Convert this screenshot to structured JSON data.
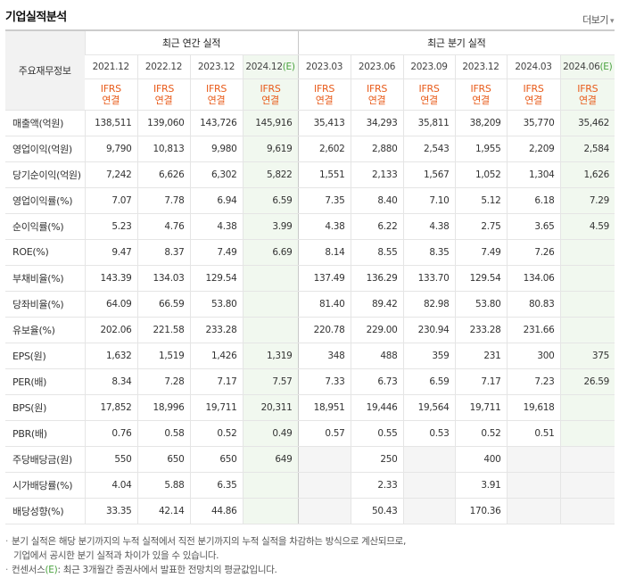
{
  "section_title": "기업실적분석",
  "more_label": "더보기",
  "more_arrow": "▾",
  "label_header": "주요재무정보",
  "groups": {
    "annual": "최근 연간 실적",
    "quarter": "최근 분기 실적"
  },
  "periods": [
    {
      "p": "2021.12",
      "e": ""
    },
    {
      "p": "2022.12",
      "e": ""
    },
    {
      "p": "2023.12",
      "e": ""
    },
    {
      "p": "2024.12",
      "e": "(E)"
    },
    {
      "p": "2023.03",
      "e": ""
    },
    {
      "p": "2023.06",
      "e": ""
    },
    {
      "p": "2023.09",
      "e": ""
    },
    {
      "p": "2023.12",
      "e": ""
    },
    {
      "p": "2024.03",
      "e": ""
    },
    {
      "p": "2024.06",
      "e": "(E)"
    }
  ],
  "basis_line1": "IFRS",
  "basis_line2": "연결",
  "rows": [
    {
      "label": "매출액(억원)",
      "values": [
        "138,511",
        "139,060",
        "143,726",
        "145,916",
        "35,413",
        "34,293",
        "35,811",
        "38,209",
        "35,770",
        "35,462"
      ]
    },
    {
      "label": "영업이익(억원)",
      "values": [
        "9,790",
        "10,813",
        "9,980",
        "9,619",
        "2,602",
        "2,880",
        "2,543",
        "1,955",
        "2,209",
        "2,584"
      ]
    },
    {
      "label": "당기순이익(억원)",
      "values": [
        "7,242",
        "6,626",
        "6,302",
        "5,822",
        "1,551",
        "2,133",
        "1,567",
        "1,052",
        "1,304",
        "1,626"
      ]
    },
    {
      "label": "영업이익률(%)",
      "values": [
        "7.07",
        "7.78",
        "6.94",
        "6.59",
        "7.35",
        "8.40",
        "7.10",
        "5.12",
        "6.18",
        "7.29"
      ]
    },
    {
      "label": "순이익률(%)",
      "values": [
        "5.23",
        "4.76",
        "4.38",
        "3.99",
        "4.38",
        "6.22",
        "4.38",
        "2.75",
        "3.65",
        "4.59"
      ]
    },
    {
      "label": "ROE(%)",
      "values": [
        "9.47",
        "8.37",
        "7.49",
        "6.69",
        "8.14",
        "8.55",
        "8.35",
        "7.49",
        "7.26",
        ""
      ]
    },
    {
      "label": "부채비율(%)",
      "values": [
        "143.39",
        "134.03",
        "129.54",
        "",
        "137.49",
        "136.29",
        "133.70",
        "129.54",
        "134.06",
        ""
      ]
    },
    {
      "label": "당좌비율(%)",
      "values": [
        "64.09",
        "66.59",
        "53.80",
        "",
        "81.40",
        "89.42",
        "82.98",
        "53.80",
        "80.83",
        ""
      ]
    },
    {
      "label": "유보율(%)",
      "values": [
        "202.06",
        "221.58",
        "233.28",
        "",
        "220.78",
        "229.00",
        "230.94",
        "233.28",
        "231.66",
        ""
      ]
    },
    {
      "label": "EPS(원)",
      "values": [
        "1,632",
        "1,519",
        "1,426",
        "1,319",
        "348",
        "488",
        "359",
        "231",
        "300",
        "375"
      ]
    },
    {
      "label": "PER(배)",
      "values": [
        "8.34",
        "7.28",
        "7.17",
        "7.57",
        "7.33",
        "6.73",
        "6.59",
        "7.17",
        "7.23",
        "26.59"
      ]
    },
    {
      "label": "BPS(원)",
      "values": [
        "17,852",
        "18,996",
        "19,711",
        "20,311",
        "18,951",
        "19,446",
        "19,564",
        "19,711",
        "19,618",
        ""
      ]
    },
    {
      "label": "PBR(배)",
      "values": [
        "0.76",
        "0.58",
        "0.52",
        "0.49",
        "0.57",
        "0.55",
        "0.53",
        "0.52",
        "0.51",
        ""
      ]
    },
    {
      "label": "주당배당금(원)",
      "values": [
        "550",
        "650",
        "650",
        "649",
        "",
        "250",
        "",
        "400",
        "",
        ""
      ]
    },
    {
      "label": "시가배당률(%)",
      "values": [
        "4.04",
        "5.88",
        "6.35",
        "",
        "",
        "2.33",
        "",
        "3.91",
        "",
        ""
      ]
    },
    {
      "label": "배당성향(%)",
      "values": [
        "33.35",
        "42.14",
        "44.86",
        "",
        "",
        "50.43",
        "",
        "170.36",
        "",
        ""
      ]
    }
  ],
  "notes": {
    "line1": "분기 실적은 해당 분기까지의 누적 실적에서 직전 분기까지의 누적 실적을 차감하는 방식으로 계산되므로,",
    "line2": "기업에서 공시한 분기 실적과 차이가 있을 수 있습니다.",
    "line3_pre": "컨센서스",
    "line3_mark": "(E)",
    "line3_post": ": 최근 3개월간 증권사에서 발표한 전망치의 평균값입니다."
  },
  "colors": {
    "ifrs": "#e85b1a",
    "estimate_bg": "#f1f8ef",
    "estimate_mark": "#4aa23f",
    "empty_bg": "#f5f5f5"
  }
}
